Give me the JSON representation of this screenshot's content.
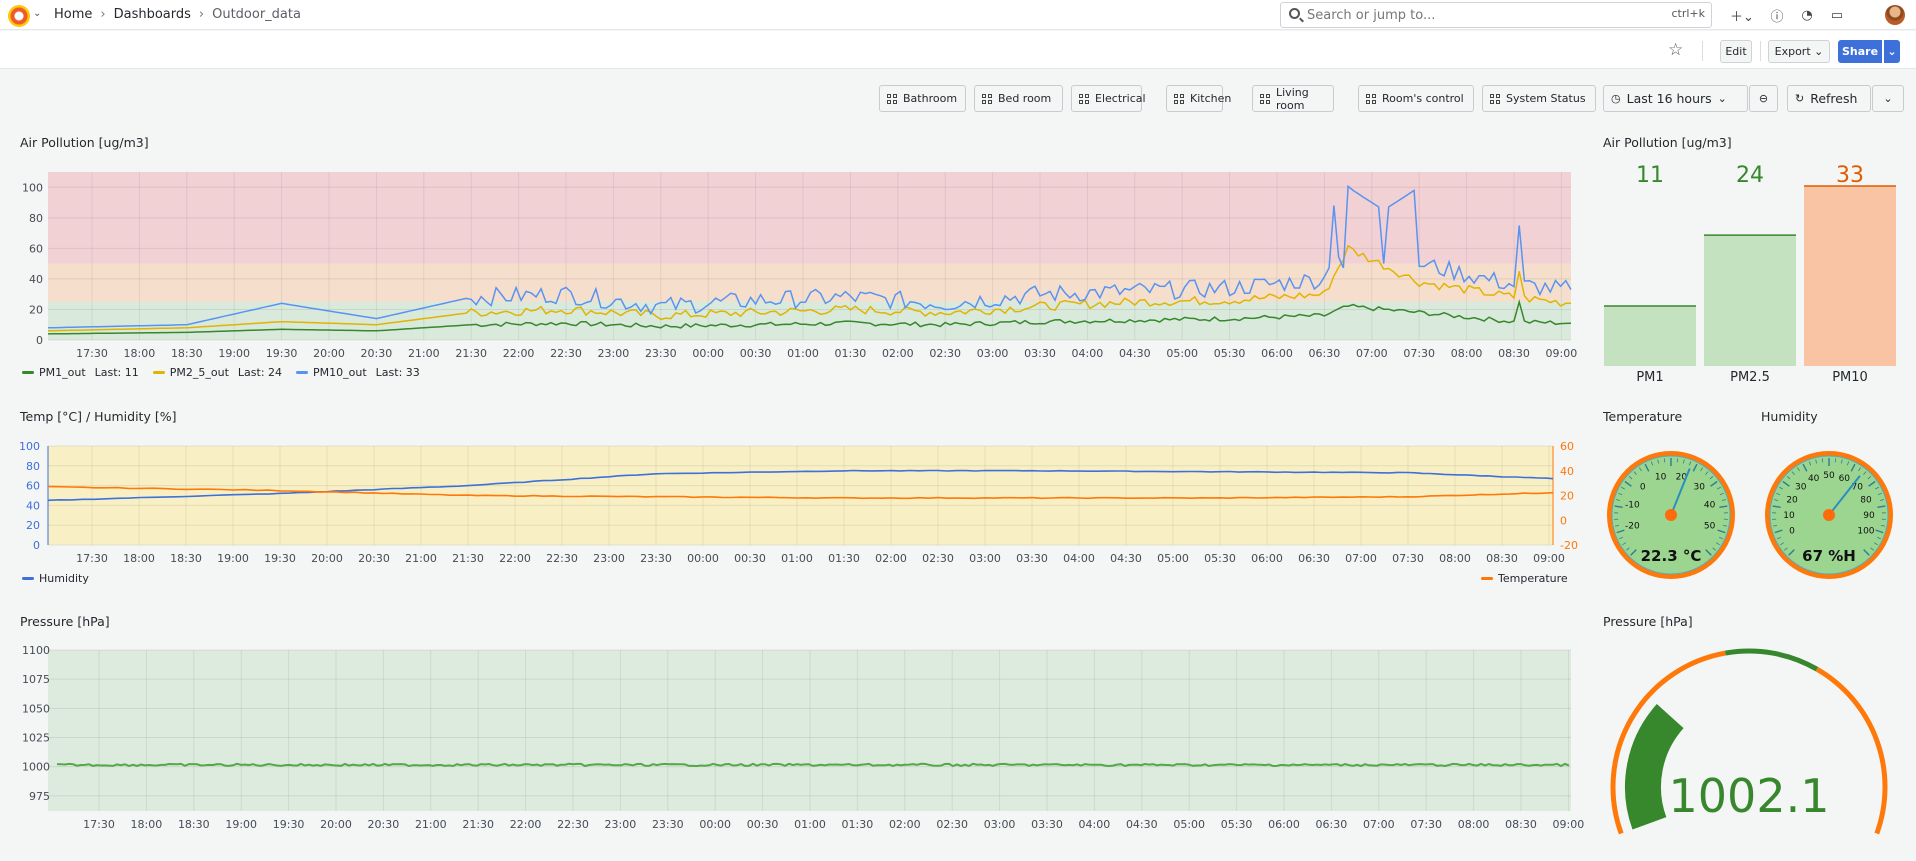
{
  "breadcrumb": {
    "home": "Home",
    "dashboards": "Dashboards",
    "current": "Outdoor_data"
  },
  "search": {
    "placeholder": "Search or jump to...",
    "shortcut": "ctrl+k"
  },
  "toolbar": {
    "edit": "Edit",
    "export": "Export",
    "share": "Share"
  },
  "nav_links": [
    "Bathroom",
    "Bed room",
    "Electrical",
    "Kitchen",
    "Living room",
    "Room's control",
    "System Status"
  ],
  "time_picker": {
    "label": "Last 16 hours"
  },
  "refresh": {
    "label": "Refresh"
  },
  "time_ticks": [
    "17:30",
    "18:00",
    "18:30",
    "19:00",
    "19:30",
    "20:00",
    "20:30",
    "21:00",
    "21:30",
    "22:00",
    "22:30",
    "23:00",
    "23:30",
    "00:00",
    "00:30",
    "01:00",
    "01:30",
    "02:00",
    "02:30",
    "03:00",
    "03:30",
    "04:00",
    "04:30",
    "05:00",
    "05:30",
    "06:00",
    "06:30",
    "07:00",
    "07:30",
    "08:00",
    "08:30",
    "09:00"
  ],
  "panels": {
    "air": {
      "title": "Air Pollution [ug/m3]",
      "y_ticks": [
        "100",
        "80",
        "60",
        "40",
        "20",
        "0"
      ],
      "legend": [
        {
          "name": "PM1_out",
          "last": "Last: 11",
          "color": "#37872d"
        },
        {
          "name": "PM2_5_out",
          "last": "Last: 24",
          "color": "#e0b400"
        },
        {
          "name": "PM10_out",
          "last": "Last: 33",
          "color": "#5794f2"
        }
      ]
    },
    "air_bars": {
      "title": "Air Pollution [ug/m3]",
      "bars": [
        {
          "label": "PM1",
          "value": "11",
          "color": "#37872d"
        },
        {
          "label": "PM2.5",
          "value": "24",
          "color": "#37872d"
        },
        {
          "label": "PM10",
          "value": "33",
          "color": "#e05c00"
        }
      ]
    },
    "temp": {
      "title": "Temp [°C] / Humidity [%]",
      "y_left": [
        "100",
        "80",
        "60",
        "40",
        "20",
        "0"
      ],
      "y_right": [
        "60",
        "40",
        "20",
        "0",
        "-20"
      ],
      "legend_left": "Humidity",
      "legend_right": "Temperature"
    },
    "temp_gauge": {
      "title": "Temperature",
      "readout": "22.3  °C",
      "ticks": [
        "-20",
        "-10",
        "0",
        "10",
        "20",
        "30",
        "40",
        "50"
      ]
    },
    "hum_gauge": {
      "title": "Humidity",
      "readout": "67 %H",
      "ticks": [
        "0",
        "10",
        "20",
        "30",
        "40",
        "50",
        "60",
        "70",
        "80",
        "90",
        "100"
      ]
    },
    "pressure": {
      "title": "Pressure [hPa]",
      "y_ticks": [
        "1100",
        "1075",
        "1050",
        "1025",
        "1000",
        "975"
      ]
    },
    "pressure_gauge": {
      "title": "Pressure [hPa]",
      "value": "1002.1"
    }
  },
  "chart_data": [
    {
      "type": "line",
      "title": "Air Pollution [ug/m3]",
      "ylim": [
        0,
        110
      ],
      "x": [
        "17:30",
        "18:30",
        "19:30",
        "20:30",
        "21:30",
        "22:30",
        "23:30",
        "00:30",
        "01:30",
        "02:30",
        "03:30",
        "04:30",
        "05:30",
        "06:30",
        "07:15",
        "07:30",
        "08:30",
        "09:00"
      ],
      "series": [
        {
          "name": "PM1_out",
          "values": [
            4,
            5,
            7,
            6,
            10,
            11,
            9,
            10,
            11,
            10,
            12,
            13,
            14,
            16,
            22,
            18,
            12,
            11
          ]
        },
        {
          "name": "PM2_5_out",
          "values": [
            6,
            8,
            12,
            10,
            18,
            20,
            16,
            18,
            20,
            18,
            22,
            25,
            26,
            30,
            60,
            38,
            28,
            24
          ]
        },
        {
          "name": "PM10_out",
          "values": [
            8,
            10,
            24,
            14,
            28,
            30,
            22,
            26,
            28,
            24,
            30,
            32,
            34,
            40,
            100,
            50,
            36,
            33
          ]
        }
      ]
    },
    {
      "type": "bar",
      "title": "Air Pollution [ug/m3]",
      "categories": [
        "PM1",
        "PM2.5",
        "PM10"
      ],
      "values": [
        11,
        24,
        33
      ]
    },
    {
      "type": "line",
      "title": "Temp [°C] / Humidity [%]",
      "x": [
        "17:30",
        "19:30",
        "21:30",
        "23:30",
        "01:30",
        "03:30",
        "05:30",
        "07:30",
        "09:00"
      ],
      "series": [
        {
          "name": "Humidity",
          "values": [
            45,
            52,
            60,
            72,
            75,
            75,
            74,
            73,
            67
          ]
        },
        {
          "name": "Temperature",
          "values": [
            27,
            24,
            20,
            19,
            18,
            18,
            18,
            19,
            22.3
          ]
        }
      ]
    },
    {
      "type": "line",
      "title": "Pressure [hPa]",
      "ylim": [
        962,
        1100
      ],
      "x": [
        "17:30",
        "09:00"
      ],
      "series": [
        {
          "name": "Pressure",
          "values": [
            1001,
            1002.1
          ]
        }
      ]
    }
  ]
}
